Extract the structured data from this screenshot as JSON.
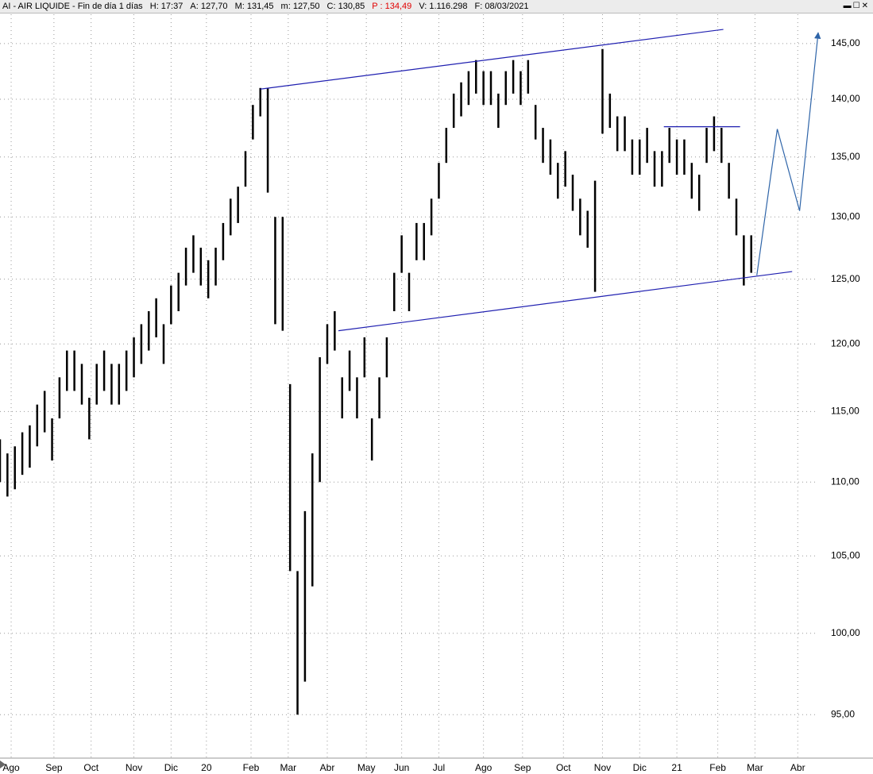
{
  "chart_data": {
    "type": "hilo",
    "header": [
      "AI - AIR LIQUIDE - Fin de día 1 días",
      "H: 17:37",
      "A: 127,70",
      "M: 131,45",
      "m: 127,50",
      "C: 130,85",
      "P : 134,49",
      "V: 1.116.298",
      "F: 08/03/2021"
    ],
    "log_scale": true,
    "grid": true,
    "color": "#000000",
    "ylim": [
      92.9,
      147.7
    ],
    "yticks": [
      {
        "value": 95,
        "label": "95,00"
      },
      {
        "value": 100,
        "label": "100,00"
      },
      {
        "value": 105,
        "label": "105,00"
      },
      {
        "value": 110,
        "label": "110,00"
      },
      {
        "value": 115,
        "label": "115,00"
      },
      {
        "value": 120,
        "label": "120,00"
      },
      {
        "value": 125,
        "label": "125,00"
      },
      {
        "value": 130,
        "label": "130,00"
      },
      {
        "value": 135,
        "label": "135,00"
      },
      {
        "value": 140,
        "label": "140,00"
      },
      {
        "value": 145,
        "label": "145,00"
      }
    ],
    "xlim": [
      0,
      440
    ],
    "xticks": [
      {
        "value": 6,
        "label": "Ago"
      },
      {
        "value": 29,
        "label": "Sep"
      },
      {
        "value": 49,
        "label": "Oct"
      },
      {
        "value": 72,
        "label": "Nov"
      },
      {
        "value": 92,
        "label": "Dic"
      },
      {
        "value": 111,
        "label": "20"
      },
      {
        "value": 135,
        "label": "Feb"
      },
      {
        "value": 155,
        "label": "Mar"
      },
      {
        "value": 176,
        "label": "Abr"
      },
      {
        "value": 197,
        "label": "May"
      },
      {
        "value": 216,
        "label": "Jun"
      },
      {
        "value": 236,
        "label": "Jul"
      },
      {
        "value": 260,
        "label": "Ago"
      },
      {
        "value": 281,
        "label": "Sep"
      },
      {
        "value": 303,
        "label": "Oct"
      },
      {
        "value": 324,
        "label": "Nov"
      },
      {
        "value": 344,
        "label": "Dic"
      },
      {
        "value": 364,
        "label": "21"
      },
      {
        "value": 386,
        "label": "Feb"
      },
      {
        "value": 406,
        "label": "Mar"
      },
      {
        "value": 429,
        "label": "Abr"
      }
    ],
    "x": [
      0,
      4,
      8,
      12,
      16,
      20,
      24,
      28,
      32,
      36,
      40,
      44,
      48,
      52,
      56,
      60,
      64,
      68,
      72,
      76,
      80,
      84,
      88,
      92,
      96,
      100,
      104,
      108,
      112,
      116,
      120,
      124,
      128,
      132,
      136,
      140,
      144,
      148,
      152,
      156,
      160,
      164,
      168,
      172,
      176,
      180,
      184,
      188,
      192,
      196,
      200,
      204,
      208,
      212,
      216,
      220,
      224,
      228,
      232,
      236,
      240,
      244,
      248,
      252,
      256,
      260,
      264,
      268,
      272,
      276,
      280,
      284,
      288,
      292,
      296,
      300,
      304,
      308,
      312,
      316,
      320,
      324,
      328,
      332,
      336,
      340,
      344,
      348,
      352,
      356,
      360,
      364,
      368,
      372,
      376,
      380,
      384,
      388,
      392,
      396,
      400,
      404
    ],
    "high": [
      113,
      112,
      112.5,
      113.5,
      114,
      115.5,
      116.5,
      114.5,
      117.5,
      119.5,
      119.5,
      118.5,
      116,
      118.5,
      119.5,
      118.5,
      118.5,
      119.5,
      120.5,
      121.5,
      122.5,
      123.5,
      121.5,
      124.5,
      125.5,
      127.5,
      128.5,
      127.5,
      126.5,
      127.5,
      129.5,
      131.5,
      132.5,
      135.5,
      139.5,
      141,
      141,
      130,
      130,
      117,
      104,
      108,
      112,
      119,
      121.5,
      122.5,
      117.5,
      119.5,
      117.5,
      120.5,
      114.5,
      117.5,
      120.5,
      125.5,
      128.5,
      125.5,
      129.5,
      129.5,
      131.5,
      134.5,
      137.5,
      140.5,
      141.5,
      142.5,
      143.5,
      142.5,
      142.5,
      140.5,
      142.5,
      143.5,
      142.5,
      143.5,
      139.5,
      137.5,
      136.5,
      134.5,
      135.5,
      133.5,
      131.5,
      130.5,
      133,
      144.5,
      140.5,
      138.5,
      138.5,
      136.5,
      136.5,
      137.5,
      135.5,
      135.5,
      137.5,
      136.5,
      136.5,
      134.5,
      133.5,
      137.5,
      138.5,
      137.5,
      134.5,
      131.5,
      128.5,
      128.5
    ],
    "low": [
      110,
      109,
      109.5,
      110.5,
      111,
      112.5,
      113.5,
      111.5,
      114.5,
      116.5,
      116.5,
      115.5,
      113,
      115.5,
      116.5,
      115.5,
      115.5,
      116.5,
      117.5,
      118.5,
      119.5,
      120.5,
      118.5,
      121.5,
      122.5,
      124.5,
      125.5,
      124.5,
      123.5,
      124.5,
      126.5,
      128.5,
      129.5,
      132.5,
      136.5,
      138.5,
      132,
      121.5,
      121,
      104,
      95,
      97,
      103,
      110,
      118.5,
      119.5,
      114.5,
      116.5,
      114.5,
      117.5,
      111.5,
      114.5,
      117.5,
      122.5,
      125.5,
      122.5,
      126.5,
      126.5,
      128.5,
      131.5,
      134.5,
      137.5,
      138.5,
      139.5,
      140.5,
      139.5,
      139.5,
      137.5,
      139.5,
      140.5,
      139.5,
      140.5,
      136.5,
      134.5,
      133.5,
      131.5,
      132.5,
      130.5,
      128.5,
      127.5,
      124,
      137,
      137.5,
      135.5,
      135.5,
      133.5,
      133.5,
      134.5,
      132.5,
      132.5,
      134.5,
      133.5,
      133.5,
      131.5,
      130.5,
      134.5,
      135.5,
      134.5,
      131.5,
      128.5,
      124.5,
      125.5
    ],
    "lines": [
      {
        "color": "#1f1fb0",
        "x": [
          140,
          389
        ],
        "y": [
          140.9,
          146.3
        ]
      },
      {
        "color": "#1f1fb0",
        "x": [
          182,
          426
        ],
        "y": [
          121.0,
          125.6
        ]
      },
      {
        "color": "#1f1fb0",
        "x": [
          357,
          398
        ],
        "y": [
          137.6,
          137.6
        ]
      },
      {
        "color": "#2e64a8",
        "arrow": true,
        "x": [
          407,
          418,
          430,
          440
        ],
        "y": [
          125.3,
          137.4,
          130.5,
          146
        ]
      }
    ]
  }
}
